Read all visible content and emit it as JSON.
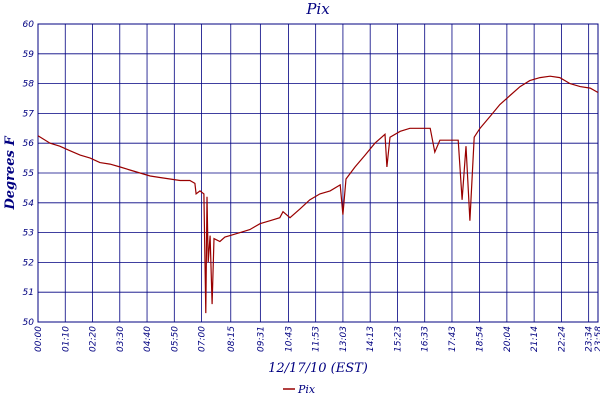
{
  "chart_data": {
    "type": "line",
    "title": "Pix",
    "y_label": "Degrees F",
    "x_label": "12/17/10 (EST)",
    "x": [
      "00:00",
      "00:31",
      "00:56",
      "01:22",
      "01:48",
      "02:14",
      "02:39",
      "03:05",
      "03:31",
      "03:56",
      "04:22",
      "04:48",
      "05:13",
      "05:39",
      "06:05",
      "06:30",
      "06:43",
      "06:46",
      "06:56",
      "07:06",
      "07:11",
      "07:14",
      "07:17",
      "07:22",
      "07:27",
      "07:32",
      "07:47",
      "08:00",
      "08:13",
      "08:39",
      "09:04",
      "09:17",
      "09:30",
      "09:56",
      "10:21",
      "10:29",
      "10:47",
      "11:13",
      "11:38",
      "12:04",
      "12:30",
      "12:56",
      "13:03",
      "13:11",
      "13:34",
      "14:00",
      "14:25",
      "14:51",
      "14:56",
      "15:04",
      "15:30",
      "15:55",
      "16:21",
      "16:47",
      "16:59",
      "17:12",
      "17:38",
      "17:59",
      "18:09",
      "18:19",
      "18:29",
      "18:40",
      "18:55",
      "19:21",
      "19:46",
      "20:12",
      "20:38",
      "21:03",
      "21:29",
      "21:55",
      "22:20",
      "22:46",
      "23:12",
      "23:38",
      "23:58"
    ],
    "series": [
      {
        "name": "Pix",
        "color": "#990000",
        "values": [
          56.25,
          56.0,
          55.9,
          55.75,
          55.6,
          55.5,
          55.35,
          55.3,
          55.2,
          55.1,
          55.0,
          54.9,
          54.85,
          54.8,
          54.75,
          54.75,
          54.65,
          54.3,
          54.4,
          54.3,
          50.3,
          54.2,
          52.0,
          52.9,
          50.6,
          52.8,
          52.7,
          52.85,
          52.9,
          53.0,
          53.1,
          53.2,
          53.3,
          53.4,
          53.5,
          53.7,
          53.5,
          53.8,
          54.1,
          54.3,
          54.4,
          54.6,
          53.6,
          54.8,
          55.2,
          55.6,
          56.0,
          56.3,
          55.2,
          56.2,
          56.4,
          56.5,
          56.5,
          56.5,
          55.7,
          56.1,
          56.1,
          56.1,
          54.1,
          55.9,
          53.4,
          56.2,
          56.5,
          56.9,
          57.3,
          57.6,
          57.9,
          58.1,
          58.2,
          58.25,
          58.2,
          58.0,
          57.9,
          57.85,
          57.7
        ]
      }
    ],
    "xlim": [
      "00:00",
      "23:58"
    ],
    "xticks": [
      "00:00",
      "01:10",
      "02:20",
      "03:30",
      "04:40",
      "05:50",
      "07:00",
      "08:15",
      "09:31",
      "10:43",
      "11:53",
      "13:03",
      "14:13",
      "15:23",
      "16:33",
      "17:43",
      "18:54",
      "20:04",
      "21:14",
      "22:24",
      "23:34",
      "23:58"
    ],
    "ylim": [
      50,
      60
    ],
    "yticks": [
      50,
      51,
      52,
      53,
      54,
      55,
      56,
      57,
      58,
      59,
      60
    ],
    "grid": true,
    "grid_color": "#000080"
  }
}
